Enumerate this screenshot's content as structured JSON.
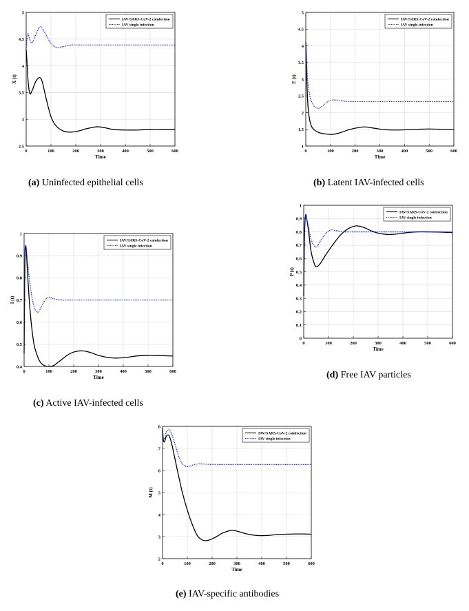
{
  "legend_labels": [
    "IAV/SARS-CoV-2 coinfection",
    "IAV single infection"
  ],
  "colors": {
    "coinfection": "#000000",
    "single": "#1f2bd6"
  },
  "panels": [
    {
      "letter": "(a)",
      "caption": "Uninfected epithelial cells",
      "chart_data": {
        "type": "line",
        "xlabel": "Time",
        "ylabel": "X (t)",
        "xlim": [
          0,
          600
        ],
        "ylim": [
          2.5,
          5
        ],
        "xticks": [
          0,
          100,
          200,
          300,
          400,
          500,
          600
        ],
        "yticks": [
          2.5,
          3,
          3.5,
          4,
          4.5,
          5
        ],
        "grid": true,
        "legend": "top-right",
        "series": [
          {
            "name": "IAV/SARS-CoV-2 coinfection",
            "style": "solid",
            "x": [
              0,
              3,
              8,
              15,
              25,
              40,
              55,
              65,
              80,
              100,
              120,
              150,
              180,
              210,
              240,
              270,
              290,
              320,
              350,
              400,
              450,
              500,
              550,
              600
            ],
            "y": [
              4.3,
              4.1,
              3.7,
              3.48,
              3.55,
              3.72,
              3.78,
              3.7,
              3.4,
              3.05,
              2.88,
              2.78,
              2.76,
              2.78,
              2.82,
              2.85,
              2.86,
              2.84,
              2.81,
              2.8,
              2.8,
              2.81,
              2.81,
              2.81
            ]
          },
          {
            "name": "IAV single infection",
            "style": "dotted",
            "x": [
              0,
              3,
              8,
              15,
              25,
              40,
              55,
              65,
              80,
              100,
              120,
              150,
              180,
              210,
              250,
              300,
              400,
              500,
              600
            ],
            "y": [
              4.3,
              4.52,
              4.6,
              4.48,
              4.44,
              4.6,
              4.73,
              4.7,
              4.58,
              4.42,
              4.35,
              4.36,
              4.39,
              4.39,
              4.39,
              4.39,
              4.39,
              4.39,
              4.39
            ]
          }
        ]
      }
    },
    {
      "letter": "(b)",
      "caption": "Latent IAV-infected cells",
      "chart_data": {
        "type": "line",
        "xlabel": "Time",
        "ylabel": "E (t)",
        "xlim": [
          0,
          600
        ],
        "ylim": [
          1,
          5
        ],
        "xticks": [
          0,
          100,
          200,
          300,
          400,
          500,
          600
        ],
        "yticks": [
          1,
          1.5,
          2,
          2.5,
          3,
          3.5,
          4,
          4.5,
          5
        ],
        "grid": true,
        "legend": "top-right",
        "series": [
          {
            "name": "IAV/SARS-CoV-2 coinfection",
            "style": "solid",
            "x": [
              0,
              2,
              5,
              10,
              20,
              35,
              55,
              80,
              110,
              140,
              180,
              220,
              245,
              280,
              320,
              380,
              450,
              500,
              550,
              600
            ],
            "y": [
              4.1,
              3.6,
              2.8,
              2.1,
              1.65,
              1.48,
              1.4,
              1.36,
              1.35,
              1.4,
              1.5,
              1.56,
              1.57,
              1.53,
              1.49,
              1.48,
              1.5,
              1.51,
              1.5,
              1.5
            ]
          },
          {
            "name": "IAV single infection",
            "style": "dotted",
            "x": [
              0,
              2,
              5,
              10,
              20,
              35,
              50,
              60,
              75,
              90,
              110,
              130,
              160,
              200,
              300,
              400,
              500,
              600
            ],
            "y": [
              4.1,
              3.8,
              3.3,
              2.8,
              2.4,
              2.18,
              2.13,
              2.15,
              2.25,
              2.33,
              2.38,
              2.37,
              2.34,
              2.33,
              2.33,
              2.33,
              2.33,
              2.33
            ]
          }
        ]
      }
    },
    {
      "letter": "(c)",
      "caption": "Active IAV-infected cells",
      "chart_data": {
        "type": "line",
        "xlabel": "Time",
        "ylabel": "I (t)",
        "xlim": [
          0,
          600
        ],
        "ylim": [
          0.4,
          1
        ],
        "xticks": [
          0,
          100,
          200,
          300,
          400,
          500,
          600
        ],
        "yticks": [
          0.4,
          0.5,
          0.6,
          0.7,
          0.8,
          0.9,
          1
        ],
        "grid": true,
        "legend": "top-right",
        "series": [
          {
            "name": "IAV/SARS-CoV-2 coinfection",
            "style": "solid",
            "x": [
              0,
              2,
              4,
              7,
              10,
              15,
              25,
              40,
              60,
              80,
              100,
              120,
              150,
              180,
              210,
              240,
              270,
              300,
              340,
              380,
              420,
              460,
              500,
              550,
              600
            ],
            "y": [
              0.46,
              0.75,
              0.92,
              0.94,
              0.9,
              0.8,
              0.64,
              0.5,
              0.43,
              0.405,
              0.4,
              0.405,
              0.43,
              0.455,
              0.468,
              0.47,
              0.462,
              0.45,
              0.44,
              0.438,
              0.442,
              0.448,
              0.45,
              0.449,
              0.447
            ]
          },
          {
            "name": "IAV single infection",
            "style": "dotted",
            "x": [
              0,
              2,
              4,
              7,
              10,
              15,
              25,
              40,
              55,
              70,
              85,
              100,
              120,
              150,
              200,
              300,
              400,
              500,
              600
            ],
            "y": [
              0.46,
              0.78,
              0.93,
              0.945,
              0.92,
              0.86,
              0.76,
              0.67,
              0.645,
              0.67,
              0.7,
              0.712,
              0.705,
              0.7,
              0.7,
              0.7,
              0.7,
              0.7,
              0.7
            ]
          }
        ]
      }
    },
    {
      "letter": "(d)",
      "caption": "Free IAV particles",
      "chart_data": {
        "type": "line",
        "xlabel": "Time",
        "ylabel": "P (t)",
        "xlim": [
          0,
          600
        ],
        "ylim": [
          0,
          1
        ],
        "xticks": [
          0,
          100,
          200,
          300,
          400,
          500,
          600
        ],
        "yticks": [
          0,
          0.1,
          0.2,
          0.3,
          0.4,
          0.5,
          0.6,
          0.7,
          0.8,
          0.9,
          1
        ],
        "grid": true,
        "legend": "top-right",
        "series": [
          {
            "name": "IAV/SARS-CoV-2 coinfection",
            "style": "solid",
            "x": [
              0,
              3,
              7,
              12,
              20,
              30,
              45,
              55,
              70,
              90,
              120,
              150,
              180,
              200,
              215,
              240,
              270,
              300,
              340,
              380,
              420,
              460,
              500,
              550,
              600
            ],
            "y": [
              0.32,
              0.75,
              0.92,
              0.9,
              0.8,
              0.65,
              0.55,
              0.54,
              0.57,
              0.63,
              0.71,
              0.78,
              0.825,
              0.84,
              0.845,
              0.835,
              0.81,
              0.79,
              0.78,
              0.785,
              0.795,
              0.8,
              0.8,
              0.798,
              0.795
            ]
          },
          {
            "name": "IAV single infection",
            "style": "dotted",
            "x": [
              0,
              3,
              7,
              12,
              20,
              30,
              45,
              55,
              70,
              90,
              110,
              130,
              160,
              200,
              300,
              400,
              500,
              600
            ],
            "y": [
              0.32,
              0.8,
              0.92,
              0.9,
              0.83,
              0.74,
              0.69,
              0.695,
              0.74,
              0.79,
              0.815,
              0.81,
              0.8,
              0.8,
              0.8,
              0.8,
              0.8,
              0.8
            ]
          }
        ]
      }
    },
    {
      "letter": "(e)",
      "caption": "IAV-specific antibodies",
      "chart_data": {
        "type": "line",
        "xlabel": "Time",
        "ylabel": "M (t)",
        "xlim": [
          0,
          600
        ],
        "ylim": [
          2,
          8
        ],
        "xticks": [
          0,
          100,
          200,
          300,
          400,
          500,
          600
        ],
        "yticks": [
          2,
          3,
          4,
          5,
          6,
          7,
          8
        ],
        "grid": true,
        "legend": "top-right",
        "series": [
          {
            "name": "IAV/SARS-CoV-2 coinfection",
            "style": "solid",
            "x": [
              0,
              3,
              8,
              15,
              25,
              35,
              45,
              60,
              80,
              100,
              120,
              140,
              160,
              180,
              210,
              240,
              270,
              285,
              310,
              340,
              380,
              420,
              460,
              500,
              550,
              600
            ],
            "y": [
              7.9,
              7.4,
              7.3,
              7.55,
              7.6,
              7.3,
              6.8,
              6.0,
              5.0,
              4.2,
              3.55,
              3.05,
              2.85,
              2.82,
              2.95,
              3.15,
              3.27,
              3.28,
              3.22,
              3.12,
              3.05,
              3.05,
              3.09,
              3.11,
              3.12,
              3.11
            ]
          },
          {
            "name": "IAV single infection",
            "style": "dotted",
            "x": [
              0,
              3,
              8,
              15,
              25,
              35,
              50,
              65,
              80,
              95,
              110,
              130,
              150,
              180,
              220,
              300,
              400,
              500,
              600
            ],
            "y": [
              7.9,
              7.5,
              7.45,
              7.75,
              7.85,
              7.7,
              7.2,
              6.65,
              6.3,
              6.18,
              6.2,
              6.27,
              6.3,
              6.28,
              6.27,
              6.27,
              6.27,
              6.27,
              6.27
            ]
          }
        ]
      }
    }
  ]
}
